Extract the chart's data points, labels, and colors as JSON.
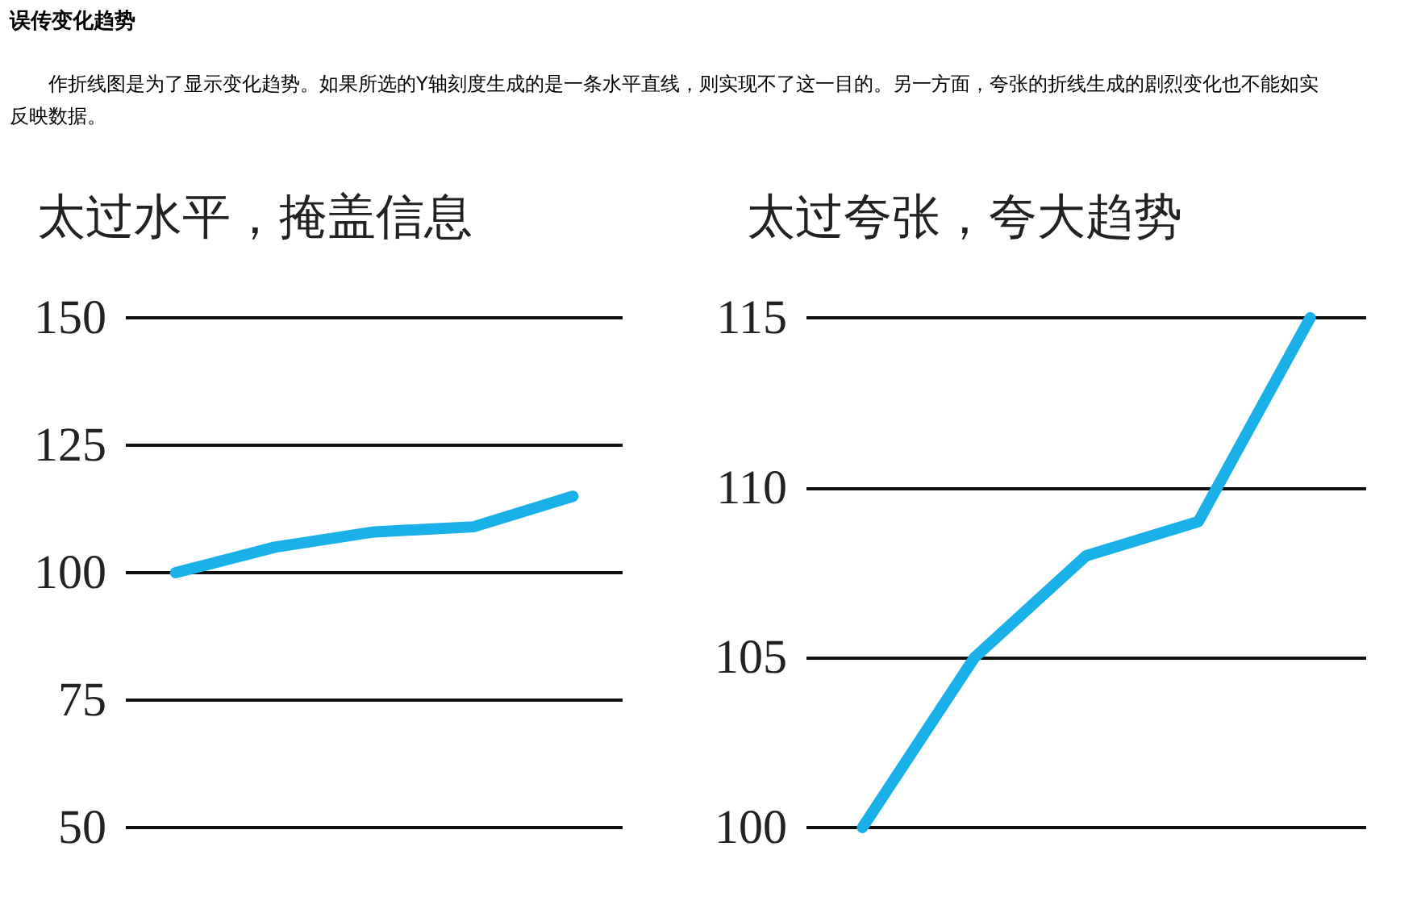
{
  "chart_data": [
    {
      "type": "line",
      "title": "太过水平，掩盖信息",
      "annotations": [
        "误传变化趋势",
        "作折线图是为了显示变化趋势。如果所选的Y轴刻度生成的是一条水平直线，则实现不了这一目的。另一方面，夸张的折线生成的剧烈变化也不能如实反映数据。"
      ],
      "categories": [
        null,
        null,
        null,
        null,
        null
      ],
      "series": [
        {
          "color": "#1ab0e8",
          "values": [
            100,
            105,
            108,
            109,
            115
          ]
        }
      ],
      "ylim": [
        50,
        150
      ],
      "yticks": [
        50,
        75,
        100,
        125,
        150
      ],
      "grid": "y",
      "tick_labels": "y",
      "line_style": "solid"
    },
    {
      "type": "line",
      "title": "太过夸张，夸大趋势",
      "categories": [
        null,
        null,
        null,
        null,
        null
      ],
      "series": [
        {
          "color": "#1ab0e8",
          "values": [
            100,
            105,
            108,
            109,
            115
          ]
        }
      ],
      "ylim": [
        100,
        115
      ],
      "yticks": [
        100,
        105,
        110,
        115
      ],
      "grid": "y",
      "tick_labels": "y",
      "line_style": "solid"
    }
  ]
}
